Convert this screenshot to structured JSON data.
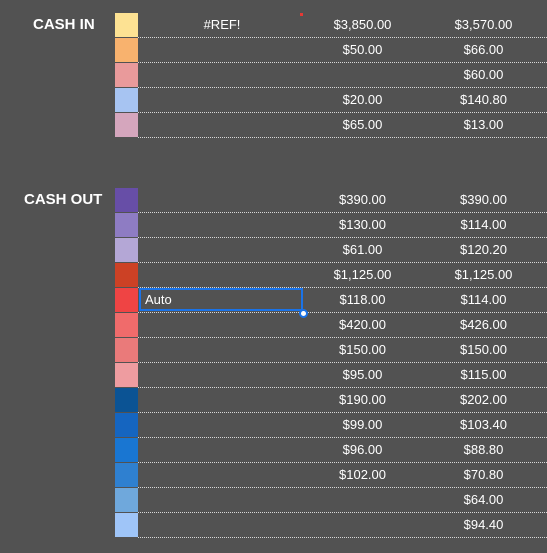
{
  "cash_in": {
    "label": "CASH IN",
    "rows": [
      {
        "color": "#FDE293",
        "ref": "#REF!",
        "v1": "$3,850.00",
        "v2": "$3,570.00"
      },
      {
        "color": "#F8B26E",
        "ref": "",
        "v1": "$50.00",
        "v2": "$66.00"
      },
      {
        "color": "#E99A9B",
        "ref": "",
        "v1": "",
        "v2": "$60.00"
      },
      {
        "color": "#A7C4F2",
        "ref": "",
        "v1": "$20.00",
        "v2": "$140.80"
      },
      {
        "color": "#D5A6BD",
        "ref": "",
        "v1": "$65.00",
        "v2": "$13.00"
      }
    ]
  },
  "cash_out": {
    "label": "CASH OUT",
    "rows": [
      {
        "color": "#674EA7",
        "ref": "",
        "v1": "$390.00",
        "v2": "$390.00"
      },
      {
        "color": "#8E7CC3",
        "ref": "",
        "v1": "$130.00",
        "v2": "$114.00"
      },
      {
        "color": "#B4A7D6",
        "ref": "",
        "v1": "$61.00",
        "v2": "$120.20"
      },
      {
        "color": "#CC4125",
        "ref": "",
        "v1": "$1,125.00",
        "v2": "$1,125.00"
      },
      {
        "color": "#EF4444",
        "ref": "",
        "v1": "$118.00",
        "v2": "$114.00"
      },
      {
        "color": "#F06B6B",
        "ref": "",
        "v1": "$420.00",
        "v2": "$426.00"
      },
      {
        "color": "#EA7A7A",
        "ref": "",
        "v1": "$150.00",
        "v2": "$150.00"
      },
      {
        "color": "#EE9CA0",
        "ref": "",
        "v1": "$95.00",
        "v2": "$115.00"
      },
      {
        "color": "#0B5394",
        "ref": "",
        "v1": "$190.00",
        "v2": "$202.00"
      },
      {
        "color": "#1565C0",
        "ref": "",
        "v1": "$99.00",
        "v2": "$103.40"
      },
      {
        "color": "#1976D2",
        "ref": "",
        "v1": "$96.00",
        "v2": "$88.80"
      },
      {
        "color": "#2F80D0",
        "ref": "",
        "v1": "$102.00",
        "v2": "$70.80"
      },
      {
        "color": "#6FA8DC",
        "ref": "",
        "v1": "",
        "v2": "$64.00"
      },
      {
        "color": "#9FC5F8",
        "ref": "",
        "v1": "",
        "v2": "$94.40"
      }
    ]
  },
  "selected_cell": {
    "value": "Auto"
  }
}
